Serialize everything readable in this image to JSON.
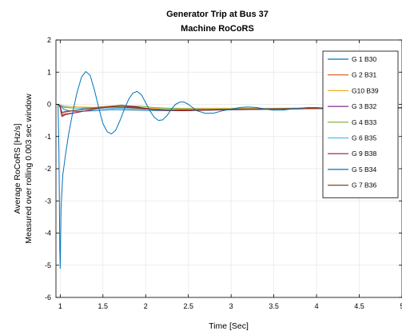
{
  "chart_data": {
    "type": "line",
    "title": "Generator Trip at Bus 37",
    "subtitle": "Machine RoCoRS",
    "xlabel": "Time [Sec]",
    "ylabel": [
      "Average RoCoRS [Hz/s]",
      "Measured over rolling 0.003 sec window"
    ],
    "xlim": [
      0.95,
      5
    ],
    "ylim": [
      -6,
      2
    ],
    "xticks": [
      1,
      1.5,
      2,
      2.5,
      3,
      3.5,
      4,
      4.5,
      5
    ],
    "xtick_labels": [
      "1",
      "1.5",
      "2",
      "2.5",
      "3",
      "3.5",
      "4",
      "4.5",
      "5"
    ],
    "yticks": [
      -6,
      -5,
      -4,
      -3,
      -2,
      -1,
      0,
      1,
      2
    ],
    "ytick_labels": [
      "-6",
      "-5",
      "-4",
      "-3",
      "-2",
      "-1",
      "0",
      "1",
      "2"
    ],
    "grid": true,
    "legend_position": "top-right",
    "series": [
      {
        "name": "G 1 B30",
        "color": "#0072BD",
        "points": [
          [
            0.95,
            0
          ],
          [
            0.98,
            0
          ],
          [
            1.0,
            -0.03
          ],
          [
            1.04,
            -0.15
          ],
          [
            1.1,
            -0.2
          ],
          [
            1.2,
            -0.22
          ],
          [
            1.4,
            -0.2
          ],
          [
            1.6,
            -0.16
          ],
          [
            1.8,
            -0.17
          ],
          [
            2.0,
            -0.19
          ],
          [
            2.4,
            -0.2
          ],
          [
            2.8,
            -0.18
          ],
          [
            3.2,
            -0.16
          ],
          [
            3.6,
            -0.15
          ],
          [
            4.0,
            -0.12
          ],
          [
            4.5,
            -0.12
          ],
          [
            5.0,
            -0.11
          ]
        ]
      },
      {
        "name": "G 2 B31",
        "color": "#D95319",
        "points": [
          [
            0.95,
            0
          ],
          [
            0.98,
            0
          ],
          [
            1.0,
            -0.1
          ],
          [
            1.02,
            -0.3
          ],
          [
            1.05,
            -0.25
          ],
          [
            1.15,
            -0.2
          ],
          [
            1.3,
            -0.13
          ],
          [
            1.5,
            -0.07
          ],
          [
            1.65,
            -0.05
          ],
          [
            1.8,
            -0.08
          ],
          [
            2.0,
            -0.13
          ],
          [
            2.3,
            -0.17
          ],
          [
            2.6,
            -0.17
          ],
          [
            3.0,
            -0.16
          ],
          [
            3.5,
            -0.15
          ],
          [
            4.0,
            -0.13
          ],
          [
            4.5,
            -0.12
          ],
          [
            5.0,
            -0.11
          ]
        ]
      },
      {
        "name": "G10 B39",
        "color": "#EDB120",
        "points": [
          [
            0.95,
            0
          ],
          [
            0.98,
            0
          ],
          [
            1.0,
            -0.02
          ],
          [
            1.05,
            -0.05
          ],
          [
            1.2,
            -0.08
          ],
          [
            1.5,
            -0.1
          ],
          [
            2.0,
            -0.12
          ],
          [
            2.5,
            -0.12
          ],
          [
            3.0,
            -0.12
          ],
          [
            3.5,
            -0.12
          ],
          [
            4.0,
            -0.11
          ],
          [
            4.5,
            -0.11
          ],
          [
            5.0,
            -0.1
          ]
        ]
      },
      {
        "name": "G 3 B32",
        "color": "#7E2F8E",
        "points": [
          [
            0.95,
            0
          ],
          [
            0.98,
            0
          ],
          [
            1.0,
            -0.1
          ],
          [
            1.02,
            -0.38
          ],
          [
            1.06,
            -0.32
          ],
          [
            1.2,
            -0.25
          ],
          [
            1.4,
            -0.15
          ],
          [
            1.6,
            -0.07
          ],
          [
            1.75,
            -0.05
          ],
          [
            1.9,
            -0.1
          ],
          [
            2.1,
            -0.17
          ],
          [
            2.4,
            -0.2
          ],
          [
            2.7,
            -0.18
          ],
          [
            3.0,
            -0.16
          ],
          [
            3.5,
            -0.15
          ],
          [
            4.0,
            -0.13
          ],
          [
            4.5,
            -0.12
          ],
          [
            5.0,
            -0.11
          ]
        ]
      },
      {
        "name": "G 4 B33",
        "color": "#77AC30",
        "points": [
          [
            0.95,
            0
          ],
          [
            0.98,
            0
          ],
          [
            1.0,
            -0.03
          ],
          [
            1.05,
            -0.1
          ],
          [
            1.2,
            -0.12
          ],
          [
            1.4,
            -0.1
          ],
          [
            1.6,
            -0.08
          ],
          [
            1.8,
            -0.05
          ],
          [
            1.95,
            -0.06
          ],
          [
            2.1,
            -0.1
          ],
          [
            2.4,
            -0.14
          ],
          [
            2.8,
            -0.15
          ],
          [
            3.2,
            -0.14
          ],
          [
            3.6,
            -0.13
          ],
          [
            4.0,
            -0.12
          ],
          [
            4.5,
            -0.11
          ],
          [
            5.0,
            -0.1
          ]
        ]
      },
      {
        "name": "G 6 B35",
        "color": "#4DBEEE",
        "points": [
          [
            0.95,
            0
          ],
          [
            0.98,
            0
          ],
          [
            1.0,
            -0.03
          ],
          [
            1.05,
            -0.08
          ],
          [
            1.2,
            -0.12
          ],
          [
            1.4,
            -0.14
          ],
          [
            1.7,
            -0.12
          ],
          [
            2.0,
            -0.15
          ],
          [
            2.4,
            -0.16
          ],
          [
            2.8,
            -0.15
          ],
          [
            3.2,
            -0.14
          ],
          [
            3.6,
            -0.13
          ],
          [
            4.0,
            -0.12
          ],
          [
            4.5,
            -0.11
          ],
          [
            5.0,
            -0.1
          ]
        ]
      },
      {
        "name": "G 9 B38",
        "color": "#A2142F",
        "points": [
          [
            0.95,
            0
          ],
          [
            0.98,
            0
          ],
          [
            1.0,
            -0.05
          ],
          [
            1.02,
            -0.35
          ],
          [
            1.06,
            -0.3
          ],
          [
            1.2,
            -0.25
          ],
          [
            1.4,
            -0.15
          ],
          [
            1.6,
            -0.06
          ],
          [
            1.72,
            -0.03
          ],
          [
            1.9,
            -0.08
          ],
          [
            2.1,
            -0.16
          ],
          [
            2.4,
            -0.2
          ],
          [
            2.7,
            -0.18
          ],
          [
            3.0,
            -0.16
          ],
          [
            3.5,
            -0.15
          ],
          [
            4.0,
            -0.13
          ],
          [
            4.5,
            -0.12
          ],
          [
            5.0,
            -0.11
          ]
        ]
      },
      {
        "name": "G 5 B34",
        "color": "#0072BD",
        "points": [
          [
            0.95,
            0
          ],
          [
            0.975,
            0
          ],
          [
            0.985,
            -1.5
          ],
          [
            0.995,
            -4.5
          ],
          [
            1.0,
            -5.1
          ],
          [
            1.01,
            -3.2
          ],
          [
            1.03,
            -2.2
          ],
          [
            1.06,
            -1.6
          ],
          [
            1.1,
            -0.9
          ],
          [
            1.15,
            -0.2
          ],
          [
            1.2,
            0.4
          ],
          [
            1.25,
            0.85
          ],
          [
            1.3,
            1.02
          ],
          [
            1.35,
            0.9
          ],
          [
            1.4,
            0.45
          ],
          [
            1.45,
            -0.1
          ],
          [
            1.5,
            -0.6
          ],
          [
            1.55,
            -0.85
          ],
          [
            1.6,
            -0.92
          ],
          [
            1.65,
            -0.8
          ],
          [
            1.7,
            -0.5
          ],
          [
            1.75,
            -0.15
          ],
          [
            1.8,
            0.15
          ],
          [
            1.85,
            0.35
          ],
          [
            1.9,
            0.4
          ],
          [
            1.95,
            0.3
          ],
          [
            2.0,
            0.05
          ],
          [
            2.05,
            -0.2
          ],
          [
            2.1,
            -0.4
          ],
          [
            2.15,
            -0.5
          ],
          [
            2.2,
            -0.48
          ],
          [
            2.25,
            -0.35
          ],
          [
            2.3,
            -0.15
          ],
          [
            2.35,
            0.0
          ],
          [
            2.4,
            0.07
          ],
          [
            2.45,
            0.07
          ],
          [
            2.5,
            0.0
          ],
          [
            2.55,
            -0.1
          ],
          [
            2.6,
            -0.2
          ],
          [
            2.7,
            -0.28
          ],
          [
            2.8,
            -0.27
          ],
          [
            2.9,
            -0.2
          ],
          [
            3.0,
            -0.15
          ],
          [
            3.1,
            -0.1
          ],
          [
            3.2,
            -0.08
          ],
          [
            3.3,
            -0.1
          ],
          [
            3.4,
            -0.15
          ],
          [
            3.5,
            -0.18
          ],
          [
            3.6,
            -0.18
          ],
          [
            3.7,
            -0.15
          ],
          [
            3.8,
            -0.12
          ],
          [
            3.9,
            -0.1
          ],
          [
            4.0,
            -0.1
          ],
          [
            4.1,
            -0.12
          ],
          [
            4.2,
            -0.13
          ],
          [
            4.3,
            -0.13
          ],
          [
            4.4,
            -0.12
          ],
          [
            4.5,
            -0.11
          ],
          [
            4.7,
            -0.11
          ],
          [
            5.0,
            -0.1
          ]
        ]
      },
      {
        "name": "G 7 B36",
        "color": "#8B4513",
        "points": [
          [
            0.95,
            0
          ],
          [
            0.98,
            0
          ],
          [
            1.0,
            -0.05
          ],
          [
            1.02,
            -0.25
          ],
          [
            1.06,
            -0.22
          ],
          [
            1.2,
            -0.18
          ],
          [
            1.4,
            -0.12
          ],
          [
            1.6,
            -0.08
          ],
          [
            1.8,
            -0.1
          ],
          [
            2.0,
            -0.15
          ],
          [
            2.3,
            -0.18
          ],
          [
            2.6,
            -0.17
          ],
          [
            3.0,
            -0.15
          ],
          [
            3.5,
            -0.14
          ],
          [
            4.0,
            -0.12
          ],
          [
            4.5,
            -0.11
          ],
          [
            5.0,
            -0.1
          ]
        ]
      }
    ]
  }
}
